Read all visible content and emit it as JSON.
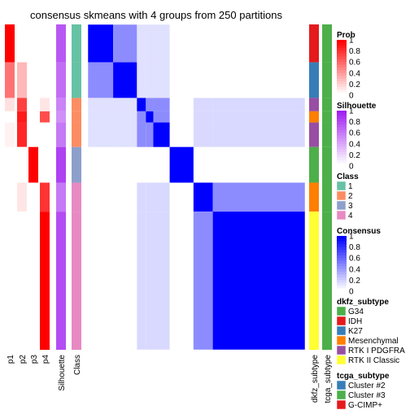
{
  "chart_data": {
    "type": "heatmap",
    "title": "consensus skmeans with 4 groups from 250 partitions",
    "annotation_columns_left": [
      "p1",
      "p2",
      "p3",
      "p4",
      "Silhouette",
      "Class"
    ],
    "annotation_columns_right": [
      "dkfz_subtype",
      "tcga_subtype"
    ],
    "groups": [
      {
        "class": "1",
        "size": 17,
        "p": [
          1.0,
          0.0,
          0.0,
          0.0
        ],
        "silhouette": 0.75
      },
      {
        "class": "1",
        "size": 16,
        "p": [
          0.55,
          0.28,
          0.0,
          0.0
        ],
        "silhouette": 0.65
      },
      {
        "class": "2",
        "size": 6,
        "p": [
          0.12,
          0.75,
          0.0,
          0.1
        ],
        "silhouette": 0.55
      },
      {
        "class": "2",
        "size": 5,
        "p": [
          0.0,
          0.9,
          0.0,
          0.7
        ],
        "silhouette": 0.5
      },
      {
        "class": "2",
        "size": 11,
        "p": [
          0.05,
          0.85,
          0.0,
          0.0
        ],
        "silhouette": 0.6
      },
      {
        "class": "3",
        "size": 16,
        "p": [
          0.0,
          0.0,
          1.0,
          0.0
        ],
        "silhouette": 0.85
      },
      {
        "class": "4",
        "size": 13,
        "p": [
          0.0,
          0.1,
          0.0,
          0.8
        ],
        "silhouette": 0.6
      },
      {
        "class": "4",
        "size": 62,
        "p": [
          0.0,
          0.0,
          0.0,
          1.0
        ],
        "silhouette": 0.8
      }
    ],
    "legends": [
      {
        "title": "Prob",
        "type": "gradient",
        "colors": [
          "#ffffff",
          "#ff0000"
        ],
        "ticks": [
          "1",
          "0.8",
          "0.6",
          "0.4",
          "0.2",
          "0"
        ]
      },
      {
        "title": "Silhouette",
        "type": "gradient",
        "colors": [
          "#ffffff",
          "#a020f0"
        ],
        "ticks": [
          "1",
          "0.8",
          "0.6",
          "0.4",
          "0.2",
          "0"
        ]
      },
      {
        "title": "Class",
        "type": "discrete",
        "items": [
          {
            "label": "1",
            "color": "#66c2a5"
          },
          {
            "label": "2",
            "color": "#fc8d62"
          },
          {
            "label": "3",
            "color": "#8da0cb"
          },
          {
            "label": "4",
            "color": "#e78ac3"
          }
        ]
      },
      {
        "title": "Consensus",
        "type": "gradient",
        "colors": [
          "#ffffff",
          "#0000ff"
        ],
        "ticks": [
          "1",
          "0.8",
          "0.6",
          "0.4",
          "0.2",
          "0"
        ]
      },
      {
        "title": "dkfz_subtype",
        "type": "discrete",
        "items": [
          {
            "label": "G34",
            "color": "#4daf4a"
          },
          {
            "label": "IDH",
            "color": "#e41a1c"
          },
          {
            "label": "K27",
            "color": "#377eb8"
          },
          {
            "label": "Mesenchymal",
            "color": "#ff7f00"
          },
          {
            "label": "RTK I PDGFRA",
            "color": "#984ea3"
          },
          {
            "label": "RTK II Classic",
            "color": "#ffff33"
          }
        ]
      },
      {
        "title": "tcga_subtype",
        "type": "discrete",
        "items": [
          {
            "label": "Cluster #2",
            "color": "#377eb8"
          },
          {
            "label": "Cluster #3",
            "color": "#4daf4a"
          },
          {
            "label": "G-CIMP+",
            "color": "#e41a1c"
          }
        ]
      }
    ]
  }
}
